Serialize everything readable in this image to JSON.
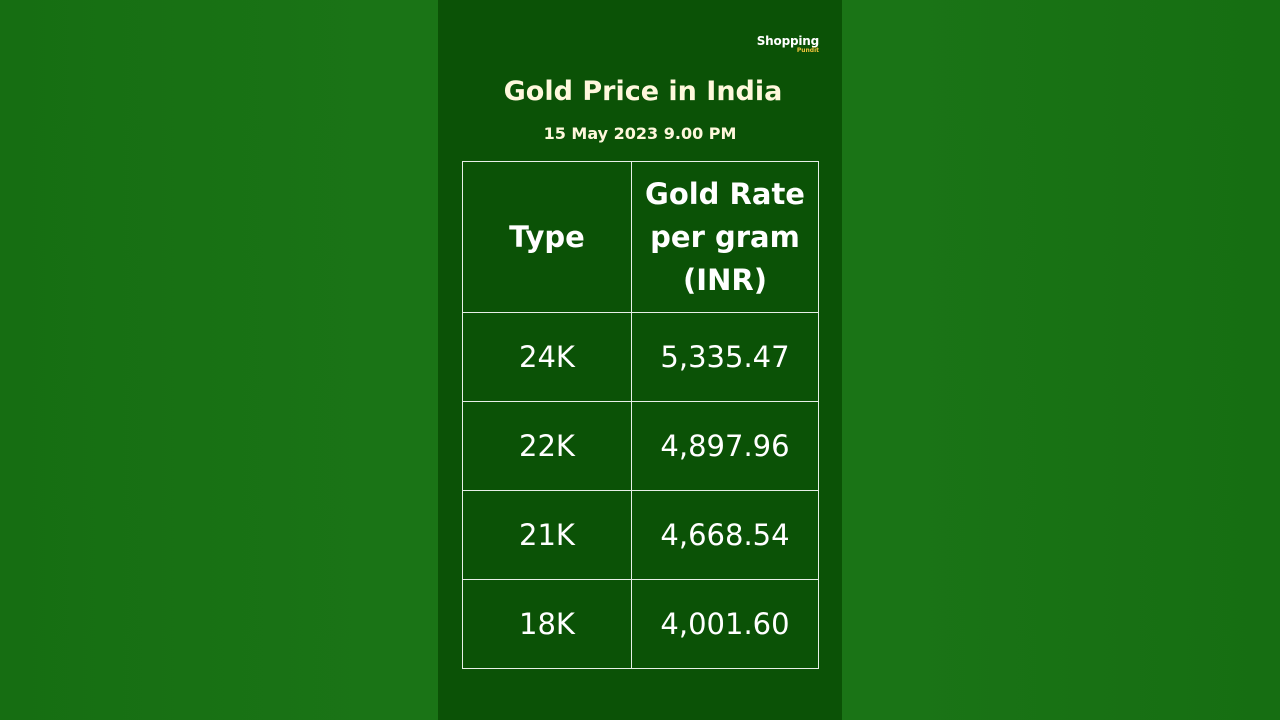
{
  "logo": {
    "main": "Shopping",
    "sub": "Pundit"
  },
  "header": {
    "title": "Gold Price in India",
    "datetime": "15 May 2023 9.00 PM"
  },
  "table": {
    "headers": [
      "Type",
      "Gold Rate per gram (INR)"
    ],
    "rows": [
      [
        "24K",
        "5,335.47"
      ],
      [
        "22K",
        "4,897.96"
      ],
      [
        "21K",
        "4,668.54"
      ],
      [
        "18K",
        "4,001.60"
      ]
    ]
  },
  "colors": {
    "background": "#1a7416",
    "card": "#0b5206",
    "title_text": "#fff8dc",
    "logo_accent": "#f0c43c",
    "border": "#e8efe8"
  }
}
